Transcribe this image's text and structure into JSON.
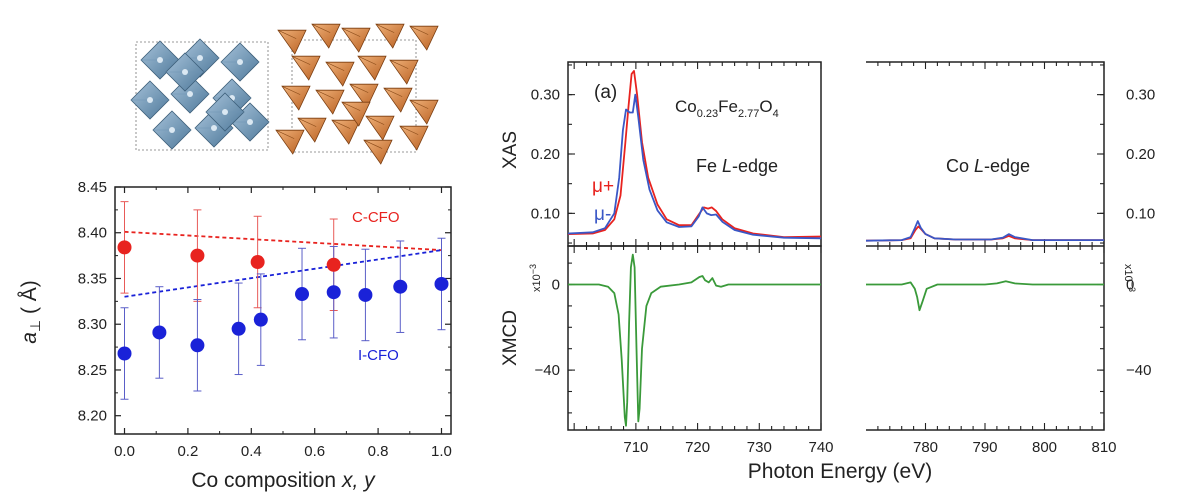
{
  "chart_data": [
    {
      "type": "scatter",
      "xlabel_main": "Co composition ",
      "xlabel_vars": "x, y",
      "ylabel_var": "a",
      "ylabel_sub": "⊥",
      "ylabel_unit": " ( Å)",
      "xlim": [
        -0.03,
        1.03
      ],
      "ylim": [
        8.18,
        8.45
      ],
      "xticks": [
        "0.0",
        "0.2",
        "0.4",
        "0.6",
        "0.8",
        "1.0"
      ],
      "yticks": [
        "8.20",
        "8.25",
        "8.30",
        "8.35",
        "8.40",
        "8.45"
      ],
      "series": [
        {
          "name": "C-CFO",
          "color": "#e8231f",
          "points": [
            {
              "x": 0.0,
              "y": 8.384,
              "err": 0.05
            },
            {
              "x": 0.23,
              "y": 8.375,
              "err": 0.05
            },
            {
              "x": 0.42,
              "y": 8.368,
              "err": 0.05
            },
            {
              "x": 0.66,
              "y": 8.365,
              "err": 0.05
            }
          ],
          "fit": [
            [
              0.0,
              8.401
            ],
            [
              1.0,
              8.381
            ]
          ]
        },
        {
          "name": "I-CFO",
          "color": "#1a22d8",
          "points": [
            {
              "x": 0.0,
              "y": 8.268,
              "err": 0.05
            },
            {
              "x": 0.11,
              "y": 8.291,
              "err": 0.05
            },
            {
              "x": 0.23,
              "y": 8.277,
              "err": 0.05
            },
            {
              "x": 0.36,
              "y": 8.295,
              "err": 0.05
            },
            {
              "x": 0.43,
              "y": 8.305,
              "err": 0.05
            },
            {
              "x": 0.56,
              "y": 8.333,
              "err": 0.05
            },
            {
              "x": 0.66,
              "y": 8.335,
              "err": 0.05
            },
            {
              "x": 0.76,
              "y": 8.332,
              "err": 0.05
            },
            {
              "x": 0.87,
              "y": 8.341,
              "err": 0.05
            },
            {
              "x": 1.0,
              "y": 8.344,
              "err": 0.05
            }
          ],
          "fit": [
            [
              0.0,
              8.33
            ],
            [
              1.0,
              8.381
            ]
          ]
        }
      ]
    },
    {
      "type": "line",
      "panel_label": "(a)",
      "formula": {
        "co": "Co",
        "co_sub": "0.23",
        "fe": "Fe",
        "fe_sub": "2.77",
        "o": "O",
        "o_sub": "4"
      },
      "xlabel": "Photon Energy (eV)",
      "xas_ylabel": "XAS",
      "xmcd_ylabel": "XMCD",
      "xmcd_scale": "x10",
      "xmcd_scale_exp": "−3",
      "fe_edge": {
        "name": "Fe ",
        "var": "L",
        "suffix": "-edge"
      },
      "co_edge": {
        "name": "Co ",
        "var": "L",
        "suffix": "-edge"
      },
      "xlim_left": [
        699,
        740
      ],
      "xlim_right": [
        770,
        810
      ],
      "xticks_left": [
        "710",
        "720",
        "730",
        "740"
      ],
      "xticks_right": [
        "780",
        "790",
        "800",
        "810"
      ],
      "xas_ylim": [
        0.045,
        0.355
      ],
      "xas_yticks": [
        "0.10",
        "0.20",
        "0.30"
      ],
      "xmcd_ylim": [
        -68,
        18
      ],
      "xmcd_yticks": [
        "0",
        "−40"
      ],
      "legend": [
        {
          "label": "μ+",
          "color": "#e8231f"
        },
        {
          "label": "μ-",
          "color": "#3a57c6"
        }
      ],
      "xmcd_color": "#3a9a3a",
      "series": [
        {
          "name": "μ+",
          "color": "#e8231f",
          "panel": "xas",
          "left": [
            [
              699,
              0.065
            ],
            [
              703,
              0.066
            ],
            [
              705,
              0.072
            ],
            [
              706.5,
              0.09
            ],
            [
              707.5,
              0.13
            ],
            [
              708.3,
              0.22
            ],
            [
              708.8,
              0.28
            ],
            [
              709.3,
              0.335
            ],
            [
              709.7,
              0.34
            ],
            [
              710.2,
              0.3
            ],
            [
              711,
              0.22
            ],
            [
              712,
              0.16
            ],
            [
              713.5,
              0.115
            ],
            [
              715,
              0.09
            ],
            [
              717,
              0.08
            ],
            [
              719,
              0.08
            ],
            [
              720.2,
              0.098
            ],
            [
              721,
              0.11
            ],
            [
              721.7,
              0.108
            ],
            [
              722.3,
              0.11
            ],
            [
              723,
              0.104
            ],
            [
              724,
              0.09
            ],
            [
              726,
              0.075
            ],
            [
              729,
              0.066
            ],
            [
              734,
              0.06
            ],
            [
              740,
              0.061
            ]
          ],
          "right": [
            [
              770,
              0.054
            ],
            [
              776,
              0.055
            ],
            [
              777.5,
              0.058
            ],
            [
              778.3,
              0.072
            ],
            [
              778.8,
              0.078
            ],
            [
              779.3,
              0.073
            ],
            [
              780,
              0.065
            ],
            [
              781.5,
              0.058
            ],
            [
              785,
              0.056
            ],
            [
              791,
              0.056
            ],
            [
              793,
              0.058
            ],
            [
              794,
              0.062
            ],
            [
              795,
              0.058
            ],
            [
              798,
              0.055
            ],
            [
              810,
              0.055
            ]
          ]
        },
        {
          "name": "μ-",
          "color": "#3a57c6",
          "panel": "xas",
          "left": [
            [
              699,
              0.066
            ],
            [
              703,
              0.068
            ],
            [
              705,
              0.075
            ],
            [
              706.5,
              0.1
            ],
            [
              707.3,
              0.16
            ],
            [
              707.9,
              0.24
            ],
            [
              708.4,
              0.275
            ],
            [
              709,
              0.27
            ],
            [
              709.5,
              0.27
            ],
            [
              709.9,
              0.3
            ],
            [
              710.4,
              0.262
            ],
            [
              711.2,
              0.19
            ],
            [
              712.2,
              0.14
            ],
            [
              713.5,
              0.105
            ],
            [
              715,
              0.085
            ],
            [
              717,
              0.077
            ],
            [
              719,
              0.078
            ],
            [
              720.2,
              0.095
            ],
            [
              720.8,
              0.11
            ],
            [
              721.5,
              0.1
            ],
            [
              722.2,
              0.097
            ],
            [
              723,
              0.098
            ],
            [
              724,
              0.086
            ],
            [
              726,
              0.072
            ],
            [
              729,
              0.064
            ],
            [
              734,
              0.059
            ],
            [
              740,
              0.058
            ]
          ],
          "right": [
            [
              770,
              0.054
            ],
            [
              776,
              0.055
            ],
            [
              777.5,
              0.06
            ],
            [
              778.2,
              0.075
            ],
            [
              778.7,
              0.087
            ],
            [
              779.2,
              0.076
            ],
            [
              780,
              0.065
            ],
            [
              781.5,
              0.058
            ],
            [
              785,
              0.056
            ],
            [
              791,
              0.056
            ],
            [
              793,
              0.059
            ],
            [
              794,
              0.065
            ],
            [
              795,
              0.06
            ],
            [
              798,
              0.055
            ],
            [
              810,
              0.055
            ]
          ]
        },
        {
          "name": "XMCD",
          "color": "#3a9a3a",
          "panel": "xmcd",
          "left": [
            [
              699,
              0
            ],
            [
              704,
              0
            ],
            [
              705.5,
              -1
            ],
            [
              706.5,
              -4
            ],
            [
              707.2,
              -14
            ],
            [
              707.7,
              -35
            ],
            [
              708.2,
              -62
            ],
            [
              708.4,
              -66
            ],
            [
              708.6,
              -55
            ],
            [
              708.9,
              -18
            ],
            [
              709.2,
              8
            ],
            [
              709.5,
              14
            ],
            [
              709.8,
              8
            ],
            [
              710.1,
              -30
            ],
            [
              710.4,
              -64
            ],
            [
              710.6,
              -58
            ],
            [
              711,
              -30
            ],
            [
              711.7,
              -10
            ],
            [
              712.5,
              -4
            ],
            [
              714,
              -1
            ],
            [
              717,
              0
            ],
            [
              719,
              1
            ],
            [
              720.3,
              3.5
            ],
            [
              720.8,
              4
            ],
            [
              721.2,
              2
            ],
            [
              721.8,
              1
            ],
            [
              722.4,
              3
            ],
            [
              723,
              -0.5
            ],
            [
              723.8,
              -1
            ],
            [
              725,
              0
            ],
            [
              740,
              0
            ]
          ],
          "right": [
            [
              770,
              0
            ],
            [
              776,
              0
            ],
            [
              777.5,
              1
            ],
            [
              778.2,
              -2
            ],
            [
              778.6,
              -6
            ],
            [
              779,
              -12
            ],
            [
              779.5,
              -8
            ],
            [
              780.2,
              -2
            ],
            [
              782,
              0
            ],
            [
              790,
              0
            ],
            [
              792,
              0.5
            ],
            [
              793.5,
              1.5
            ],
            [
              795,
              0.5
            ],
            [
              798,
              0
            ],
            [
              810,
              0
            ]
          ]
        }
      ]
    }
  ]
}
